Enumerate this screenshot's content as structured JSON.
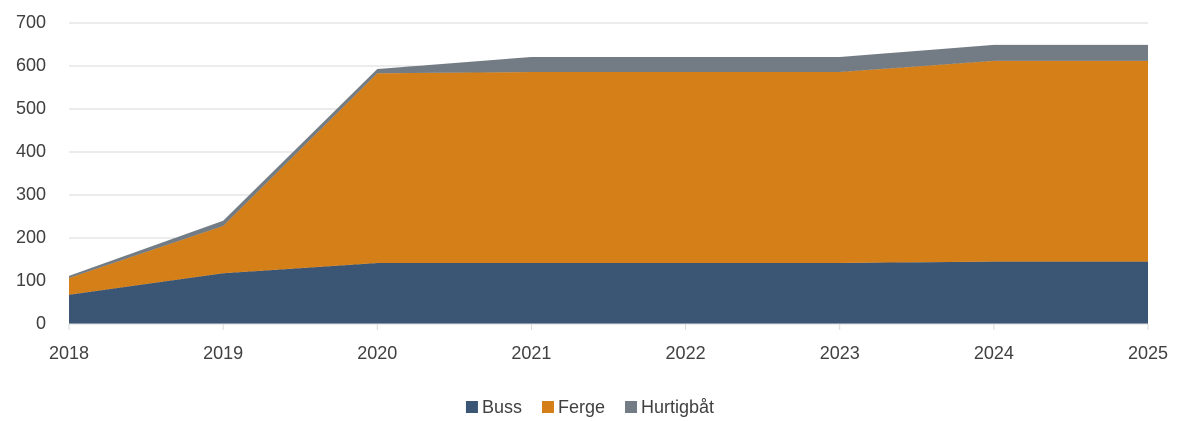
{
  "chart_data": {
    "type": "stacked_area",
    "categories": [
      "2018",
      "2019",
      "2020",
      "2021",
      "2022",
      "2023",
      "2024",
      "2025"
    ],
    "series": [
      {
        "name": "Buss",
        "color": "#3b5675",
        "values": [
          68,
          118,
          142,
          142,
          142,
          142,
          145,
          145
        ]
      },
      {
        "name": "Ferge",
        "color": "#d57f18",
        "values": [
          39,
          110,
          441,
          444,
          444,
          444,
          467,
          467
        ]
      },
      {
        "name": "Hurtigbåt",
        "color": "#737c84",
        "values": [
          5,
          12,
          10,
          35,
          35,
          35,
          37,
          37
        ]
      }
    ],
    "ylim": [
      0,
      700
    ],
    "yticks": [
      0,
      100,
      200,
      300,
      400,
      500,
      600,
      700
    ],
    "grid": true,
    "legend": "bottom"
  }
}
